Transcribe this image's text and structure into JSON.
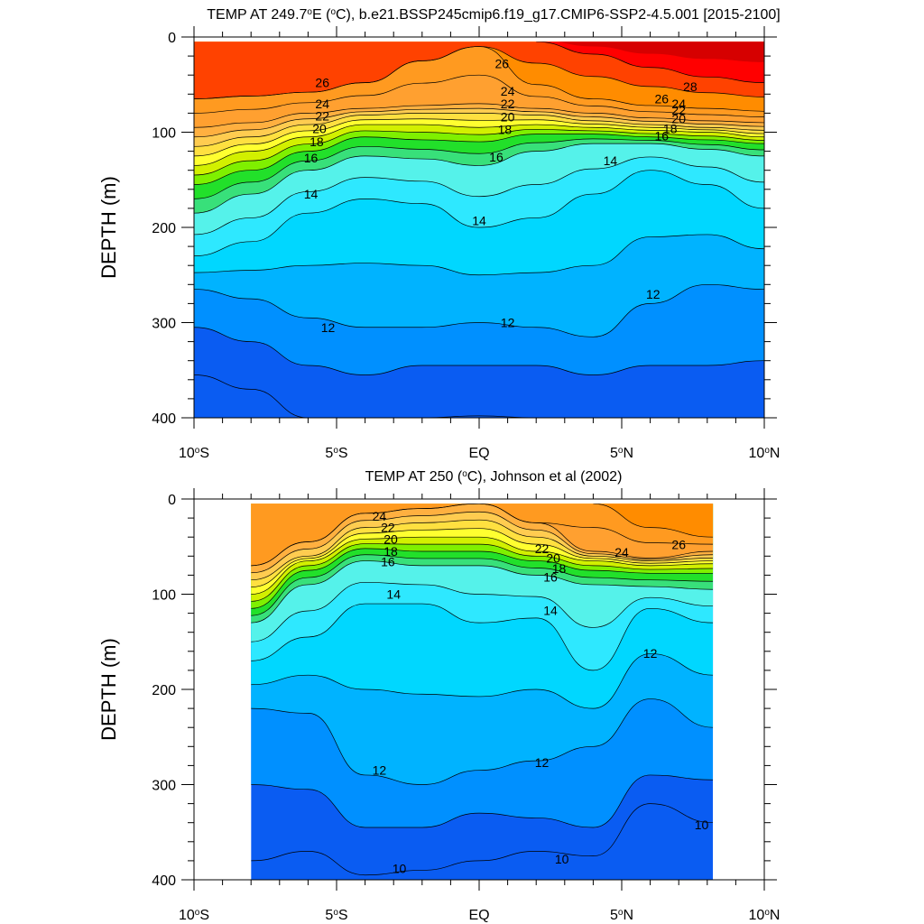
{
  "chart_data": [
    {
      "type": "contour",
      "title": "TEMP AT 249.7°E (°C), b.e21.BSSP245cmip6.f19_g17.CMIP6-SSP2-4.5.001 [2015-2100]",
      "title_parts": {
        "a": "TEMP AT 249.7",
        "sup1": "o",
        "b": "E (",
        "sup2": "o",
        "c": "C), b.e21.BSSP245cmip6.f19_g17.CMIP6-SSP2-4.5.001 [2015-2100]"
      },
      "ylabel": "DEPTH (m)",
      "xlim": [
        -10,
        10
      ],
      "ylim": [
        0,
        400
      ],
      "y_reversed": true,
      "xticks": [
        -10,
        -5,
        0,
        5,
        10
      ],
      "xtick_labels": [
        {
          "num": "10",
          "sup": "o",
          "hem": "S"
        },
        {
          "num": "5",
          "sup": "o",
          "hem": "S"
        },
        {
          "num": "EQ",
          "sup": "",
          "hem": ""
        },
        {
          "num": "5",
          "sup": "o",
          "hem": "N"
        },
        {
          "num": "10",
          "sup": "o",
          "hem": "N"
        }
      ],
      "yticks": [
        0,
        100,
        200,
        300,
        400
      ],
      "ytick_labels": [
        "0",
        "100",
        "200",
        "300",
        "400"
      ],
      "data_extent_x": [
        -10,
        10
      ],
      "levels": [
        10,
        11,
        12,
        13,
        14,
        15,
        16,
        17,
        18,
        19,
        20,
        21,
        22,
        23,
        24,
        25,
        26,
        27,
        28
      ],
      "isotherm_depths": {
        "x": [
          -10,
          -8,
          -6,
          -4,
          -2,
          0,
          2,
          4,
          6,
          8,
          10
        ],
        "levels": {
          "28": [
            null,
            null,
            null,
            null,
            null,
            null,
            5,
            18,
            32,
            42,
            48
          ],
          "26": [
            65,
            62,
            58,
            48,
            25,
            10,
            50,
            65,
            72,
            75,
            78
          ],
          "24": [
            95,
            90,
            80,
            75,
            72,
            70,
            75,
            80,
            85,
            88,
            90
          ],
          "22": [
            115,
            105,
            92,
            82,
            80,
            80,
            82,
            88,
            92,
            95,
            98
          ],
          "20": [
            135,
            120,
            105,
            92,
            92,
            95,
            92,
            95,
            98,
            100,
            105
          ],
          "18": [
            155,
            140,
            120,
            105,
            108,
            110,
            102,
            102,
            105,
            108,
            112
          ],
          "16": [
            185,
            165,
            140,
            125,
            128,
            135,
            120,
            112,
            112,
            118,
            125
          ],
          "14": [
            230,
            215,
            185,
            170,
            175,
            200,
            190,
            165,
            140,
            155,
            180
          ],
          "12": [
            265,
            275,
            295,
            305,
            305,
            300,
            305,
            315,
            280,
            260,
            265
          ],
          "11": [
            305,
            320,
            345,
            355,
            345,
            345,
            345,
            355,
            345,
            345,
            340
          ],
          "10": [
            355,
            370,
            400,
            null,
            400,
            398,
            400,
            null,
            null,
            null,
            null
          ]
        }
      },
      "contour_labels": [
        {
          "value": 26,
          "x": -5.5,
          "y": 48
        },
        {
          "value": 24,
          "x": -5.5,
          "y": 70
        },
        {
          "value": 22,
          "x": -5.5,
          "y": 83
        },
        {
          "value": 20,
          "x": -5.6,
          "y": 96
        },
        {
          "value": 18,
          "x": -5.7,
          "y": 110
        },
        {
          "value": 16,
          "x": -5.9,
          "y": 127
        },
        {
          "value": 14,
          "x": -5.9,
          "y": 165
        },
        {
          "value": 26,
          "x": 0.8,
          "y": 28
        },
        {
          "value": 24,
          "x": 1.0,
          "y": 57
        },
        {
          "value": 22,
          "x": 1.0,
          "y": 70
        },
        {
          "value": 20,
          "x": 1.0,
          "y": 84
        },
        {
          "value": 18,
          "x": 0.9,
          "y": 97
        },
        {
          "value": 16,
          "x": 0.6,
          "y": 126
        },
        {
          "value": 14,
          "x": 0.0,
          "y": 193
        },
        {
          "value": 12,
          "x": -5.3,
          "y": 305
        },
        {
          "value": 12,
          "x": 1.0,
          "y": 300
        },
        {
          "value": 14,
          "x": 4.6,
          "y": 130
        },
        {
          "value": 12,
          "x": 6.1,
          "y": 270
        },
        {
          "value": 28,
          "x": 7.4,
          "y": 52
        },
        {
          "value": 26,
          "x": 6.4,
          "y": 65
        },
        {
          "value": 24,
          "x": 7.0,
          "y": 70
        },
        {
          "value": 22,
          "x": 7.0,
          "y": 77
        },
        {
          "value": 20,
          "x": 7.0,
          "y": 86
        },
        {
          "value": 18,
          "x": 6.7,
          "y": 96
        },
        {
          "value": 16,
          "x": 6.4,
          "y": 104
        }
      ]
    },
    {
      "type": "contour",
      "title": "TEMP AT 250 (°C), Johnson et al (2002)",
      "title_parts": {
        "a": "TEMP AT 250 (",
        "sup1": "o",
        "b": "C), Johnson et al (2002)",
        "sup2": "",
        "c": ""
      },
      "ylabel": "DEPTH (m)",
      "xlim": [
        -10,
        10
      ],
      "ylim": [
        0,
        400
      ],
      "y_reversed": true,
      "xticks": [
        -10,
        -5,
        0,
        5,
        10
      ],
      "xtick_labels": [
        {
          "num": "10",
          "sup": "o",
          "hem": "S"
        },
        {
          "num": "5",
          "sup": "o",
          "hem": "S"
        },
        {
          "num": "EQ",
          "sup": "",
          "hem": ""
        },
        {
          "num": "5",
          "sup": "o",
          "hem": "N"
        },
        {
          "num": "10",
          "sup": "o",
          "hem": "N"
        }
      ],
      "yticks": [
        0,
        100,
        200,
        300,
        400
      ],
      "ytick_labels": [
        "0",
        "100",
        "200",
        "300",
        "400"
      ],
      "data_extent_x": [
        -8,
        8.2
      ],
      "levels": [
        10,
        11,
        12,
        13,
        14,
        15,
        16,
        17,
        18,
        19,
        20,
        21,
        22,
        23,
        24,
        25,
        26
      ],
      "isotherm_depths": {
        "x": [
          -8,
          -6,
          -4,
          -2,
          0,
          2,
          4,
          6,
          8.2
        ],
        "levels": {
          "26": [
            null,
            null,
            null,
            null,
            null,
            null,
            5,
            30,
            40
          ],
          "24": [
            70,
            45,
            15,
            10,
            5,
            25,
            55,
            62,
            55
          ],
          "22": [
            85,
            60,
            30,
            25,
            22,
            40,
            60,
            65,
            62
          ],
          "20": [
            100,
            65,
            42,
            40,
            40,
            55,
            65,
            70,
            68
          ],
          "18": [
            115,
            75,
            52,
            55,
            55,
            65,
            75,
            78,
            78
          ],
          "16": [
            130,
            90,
            65,
            70,
            70,
            80,
            90,
            92,
            95
          ],
          "14": [
            170,
            145,
            110,
            110,
            130,
            125,
            180,
            115,
            130
          ],
          "12": [
            220,
            225,
            290,
            300,
            285,
            275,
            260,
            210,
            240
          ],
          "11": [
            300,
            305,
            345,
            345,
            330,
            335,
            345,
            290,
            295
          ],
          "10": [
            380,
            370,
            395,
            390,
            380,
            370,
            375,
            320,
            340
          ]
        }
      },
      "contour_labels": [
        {
          "value": 24,
          "x": -3.5,
          "y": 18
        },
        {
          "value": 22,
          "x": -3.2,
          "y": 30
        },
        {
          "value": 20,
          "x": -3.1,
          "y": 42
        },
        {
          "value": 18,
          "x": -3.1,
          "y": 55
        },
        {
          "value": 16,
          "x": -3.2,
          "y": 66
        },
        {
          "value": 14,
          "x": -3.0,
          "y": 100
        },
        {
          "value": 22,
          "x": 2.2,
          "y": 52
        },
        {
          "value": 20,
          "x": 2.6,
          "y": 62
        },
        {
          "value": 18,
          "x": 2.8,
          "y": 73
        },
        {
          "value": 16,
          "x": 2.5,
          "y": 82
        },
        {
          "value": 14,
          "x": 2.5,
          "y": 117
        },
        {
          "value": 24,
          "x": 5.0,
          "y": 56
        },
        {
          "value": 26,
          "x": 7.0,
          "y": 48
        },
        {
          "value": 12,
          "x": 6.0,
          "y": 162
        },
        {
          "value": 12,
          "x": -3.5,
          "y": 285
        },
        {
          "value": 12,
          "x": 2.2,
          "y": 277
        },
        {
          "value": 10,
          "x": 7.8,
          "y": 342
        },
        {
          "value": 10,
          "x": -2.8,
          "y": 388
        },
        {
          "value": 10,
          "x": 2.9,
          "y": 378
        }
      ]
    }
  ],
  "colors": {
    "t10": "#0a5cf2",
    "t11": "#0090ff",
    "t12": "#00b3ff",
    "t13": "#00d7ff",
    "t14": "#2ee8ff",
    "t15": "#55f2ea",
    "t16": "#38e07a",
    "t17": "#22e02a",
    "t18": "#7ff000",
    "t19": "#d2f000",
    "t20": "#ffff30",
    "t21": "#ffe040",
    "t22": "#ffcc50",
    "t23": "#ffb040",
    "t24": "#ffa030",
    "t25": "#ff9a20",
    "t26": "#ff8c00",
    "t27": "#ff4200",
    "t28": "#ff0000",
    "t29": "#d60000"
  }
}
